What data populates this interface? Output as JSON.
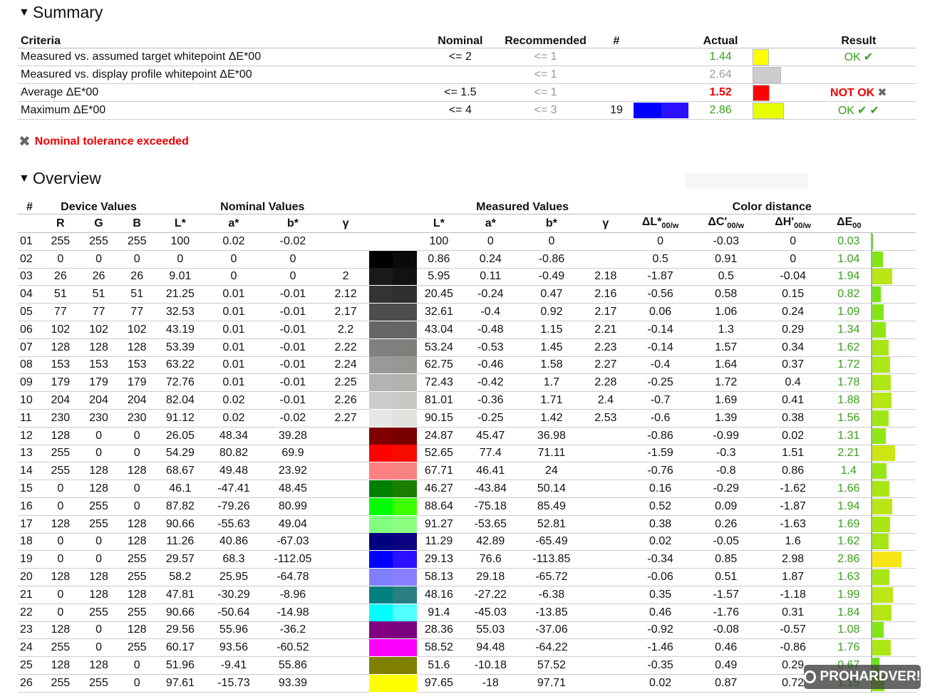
{
  "summary": {
    "title": "Summary",
    "headers": {
      "criteria": "Criteria",
      "nominal": "Nominal",
      "recommended": "Recommended",
      "count": "#",
      "actual": "Actual",
      "result": "Result"
    },
    "rows": [
      {
        "criteria": "Measured vs. assumed target whitepoint ΔE*00",
        "nominal": "<= 2",
        "recommended": "<= 1",
        "count": "",
        "count_colors": [],
        "actual": "1.44",
        "actual_style": "green",
        "bar_color": "#ffff00",
        "bar_fraction": 0.36,
        "result": "OK",
        "result_icons": [
          "check-icon"
        ]
      },
      {
        "criteria": "Measured vs. display profile whitepoint ΔE*00",
        "nominal": "",
        "recommended": "<= 1",
        "count": "",
        "count_colors": [],
        "actual": "2.64",
        "actual_style": "grey",
        "bar_color": "#cccccc",
        "bar_fraction": 0.66,
        "result": "",
        "result_icons": []
      },
      {
        "criteria": "Average ΔE*00",
        "nominal": "<= 1.5",
        "recommended": "<= 1",
        "count": "",
        "count_colors": [],
        "actual": "1.52",
        "actual_style": "red",
        "bar_color": "#ff0000",
        "bar_fraction": 0.38,
        "result": "NOT OK",
        "result_icons": [
          "cross-icon"
        ]
      },
      {
        "criteria": "Maximum ΔE*00",
        "nominal": "<= 4",
        "recommended": "<= 3",
        "count": "19",
        "count_colors": [
          "#0000ff",
          "#2a10ff"
        ],
        "actual": "2.86",
        "actual_style": "green",
        "bar_color": "#e8ff00",
        "bar_fraction": 0.72,
        "result": "OK",
        "result_icons": [
          "check-icon",
          "check-icon"
        ]
      }
    ],
    "tolerance_message": "Nominal tolerance exceeded"
  },
  "overview": {
    "title": "Overview",
    "group_headers": {
      "index": "#",
      "device": "Device Values",
      "nominal": "Nominal Values",
      "measured": "Measured Values",
      "distance": "Color distance"
    },
    "sub_headers": {
      "R": "R",
      "G": "G",
      "B": "B",
      "L": "L*",
      "a": "a*",
      "b": "b*",
      "gamma": "γ",
      "dL": "ΔL*",
      "dL_sub": "00/w",
      "dC": "ΔC'",
      "dC_sub": "00/w",
      "dH": "ΔH'",
      "dH_sub": "00/w",
      "dE": "ΔE",
      "dE_sub": "00"
    },
    "rows": [
      {
        "id": "01",
        "R": "255",
        "G": "255",
        "B": "255",
        "nL": "100",
        "na": "0.02",
        "nb": "-0.02",
        "ng": "",
        "mL": "100",
        "ma": "0",
        "mb": "0",
        "mg": "",
        "dL": "0",
        "dC": "-0.03",
        "dH": "0",
        "dE": "0.03",
        "nom_color": "#ffffff",
        "meas_color": "#ffffff"
      },
      {
        "id": "02",
        "R": "0",
        "G": "0",
        "B": "0",
        "nL": "0",
        "na": "0",
        "nb": "0",
        "ng": "",
        "mL": "0.86",
        "ma": "0.24",
        "mb": "-0.86",
        "mg": "",
        "dL": "0.5",
        "dC": "0.91",
        "dH": "0",
        "dE": "1.04",
        "nom_color": "#000000",
        "meas_color": "#0a0a0a"
      },
      {
        "id": "03",
        "R": "26",
        "G": "26",
        "B": "26",
        "nL": "9.01",
        "na": "0",
        "nb": "0",
        "ng": "2",
        "mL": "5.95",
        "ma": "0.11",
        "mb": "-0.49",
        "mg": "2.18",
        "dL": "-1.87",
        "dC": "0.5",
        "dH": "-0.04",
        "dE": "1.94",
        "nom_color": "#1a1a1a",
        "meas_color": "#121212"
      },
      {
        "id": "04",
        "R": "51",
        "G": "51",
        "B": "51",
        "nL": "21.25",
        "na": "0.01",
        "nb": "-0.01",
        "ng": "2.12",
        "mL": "20.45",
        "ma": "-0.24",
        "mb": "0.47",
        "mg": "2.16",
        "dL": "-0.56",
        "dC": "0.58",
        "dH": "0.15",
        "dE": "0.82",
        "nom_color": "#333333",
        "meas_color": "#303030"
      },
      {
        "id": "05",
        "R": "77",
        "G": "77",
        "B": "77",
        "nL": "32.53",
        "na": "0.01",
        "nb": "-0.01",
        "ng": "2.17",
        "mL": "32.61",
        "ma": "-0.4",
        "mb": "0.92",
        "mg": "2.17",
        "dL": "0.06",
        "dC": "1.06",
        "dH": "0.24",
        "dE": "1.09",
        "nom_color": "#4d4d4d",
        "meas_color": "#4c4d4c"
      },
      {
        "id": "06",
        "R": "102",
        "G": "102",
        "B": "102",
        "nL": "43.19",
        "na": "0.01",
        "nb": "-0.01",
        "ng": "2.2",
        "mL": "43.04",
        "ma": "-0.48",
        "mb": "1.15",
        "mg": "2.21",
        "dL": "-0.14",
        "dC": "1.3",
        "dH": "0.29",
        "dE": "1.34",
        "nom_color": "#666666",
        "meas_color": "#656563"
      },
      {
        "id": "07",
        "R": "128",
        "G": "128",
        "B": "128",
        "nL": "53.39",
        "na": "0.01",
        "nb": "-0.01",
        "ng": "2.22",
        "mL": "53.24",
        "ma": "-0.53",
        "mb": "1.45",
        "mg": "2.23",
        "dL": "-0.14",
        "dC": "1.57",
        "dH": "0.34",
        "dE": "1.62",
        "nom_color": "#808080",
        "meas_color": "#7f7f7c"
      },
      {
        "id": "08",
        "R": "153",
        "G": "153",
        "B": "153",
        "nL": "63.22",
        "na": "0.01",
        "nb": "-0.01",
        "ng": "2.24",
        "mL": "62.75",
        "ma": "-0.46",
        "mb": "1.58",
        "mg": "2.27",
        "dL": "-0.4",
        "dC": "1.64",
        "dH": "0.37",
        "dE": "1.72",
        "nom_color": "#999999",
        "meas_color": "#979794"
      },
      {
        "id": "09",
        "R": "179",
        "G": "179",
        "B": "179",
        "nL": "72.76",
        "na": "0.01",
        "nb": "-0.01",
        "ng": "2.25",
        "mL": "72.43",
        "ma": "-0.42",
        "mb": "1.7",
        "mg": "2.28",
        "dL": "-0.25",
        "dC": "1.72",
        "dH": "0.4",
        "dE": "1.78",
        "nom_color": "#b3b3b3",
        "meas_color": "#b1b1ae"
      },
      {
        "id": "10",
        "R": "204",
        "G": "204",
        "B": "204",
        "nL": "82.04",
        "na": "0.02",
        "nb": "-0.01",
        "ng": "2.26",
        "mL": "81.01",
        "ma": "-0.36",
        "mb": "1.71",
        "mg": "2.4",
        "dL": "-0.7",
        "dC": "1.69",
        "dH": "0.41",
        "dE": "1.88",
        "nom_color": "#cccccc",
        "meas_color": "#c8c8c5"
      },
      {
        "id": "11",
        "R": "230",
        "G": "230",
        "B": "230",
        "nL": "91.12",
        "na": "0.02",
        "nb": "-0.02",
        "ng": "2.27",
        "mL": "90.15",
        "ma": "-0.25",
        "mb": "1.42",
        "mg": "2.53",
        "dL": "-0.6",
        "dC": "1.39",
        "dH": "0.38",
        "dE": "1.56",
        "nom_color": "#e6e6e6",
        "meas_color": "#e2e2df"
      },
      {
        "id": "12",
        "R": "128",
        "G": "0",
        "B": "0",
        "nL": "26.05",
        "na": "48.34",
        "nb": "39.28",
        "ng": "",
        "mL": "24.87",
        "ma": "45.47",
        "mb": "36.98",
        "mg": "",
        "dL": "-0.86",
        "dC": "-0.99",
        "dH": "0.02",
        "dE": "1.31",
        "nom_color": "#800000",
        "meas_color": "#7a0000"
      },
      {
        "id": "13",
        "R": "255",
        "G": "0",
        "B": "0",
        "nL": "54.29",
        "na": "80.82",
        "nb": "69.9",
        "ng": "",
        "mL": "52.65",
        "ma": "77.4",
        "mb": "71.11",
        "mg": "",
        "dL": "-1.59",
        "dC": "-0.3",
        "dH": "1.51",
        "dE": "2.21",
        "nom_color": "#ff0000",
        "meas_color": "#f70a00"
      },
      {
        "id": "14",
        "R": "255",
        "G": "128",
        "B": "128",
        "nL": "68.67",
        "na": "49.48",
        "nb": "23.92",
        "ng": "",
        "mL": "67.71",
        "ma": "46.41",
        "mb": "24",
        "mg": "",
        "dL": "-0.76",
        "dC": "-0.8",
        "dH": "0.86",
        "dE": "1.4",
        "nom_color": "#ff8080",
        "meas_color": "#f88280"
      },
      {
        "id": "15",
        "R": "0",
        "G": "128",
        "B": "0",
        "nL": "46.1",
        "na": "-47.41",
        "nb": "48.45",
        "ng": "",
        "mL": "46.27",
        "ma": "-43.84",
        "mb": "50.14",
        "mg": "",
        "dL": "0.16",
        "dC": "-0.29",
        "dH": "-1.62",
        "dE": "1.66",
        "nom_color": "#008000",
        "meas_color": "#1a7f00"
      },
      {
        "id": "16",
        "R": "0",
        "G": "255",
        "B": "0",
        "nL": "87.82",
        "na": "-79.26",
        "nb": "80.99",
        "ng": "",
        "mL": "88.64",
        "ma": "-75.18",
        "mb": "85.49",
        "mg": "",
        "dL": "0.52",
        "dC": "0.09",
        "dH": "-1.87",
        "dE": "1.94",
        "nom_color": "#00ff00",
        "meas_color": "#3cff00"
      },
      {
        "id": "17",
        "R": "128",
        "G": "255",
        "B": "128",
        "nL": "90.66",
        "na": "-55.63",
        "nb": "49.04",
        "ng": "",
        "mL": "91.27",
        "ma": "-53.65",
        "mb": "52.81",
        "mg": "",
        "dL": "0.38",
        "dC": "0.26",
        "dH": "-1.63",
        "dE": "1.69",
        "nom_color": "#80ff80",
        "meas_color": "#8cff80"
      },
      {
        "id": "18",
        "R": "0",
        "G": "0",
        "B": "128",
        "nL": "11.26",
        "na": "40.86",
        "nb": "-67.03",
        "ng": "",
        "mL": "11.29",
        "ma": "42.89",
        "mb": "-65.49",
        "mg": "",
        "dL": "0.02",
        "dC": "-0.05",
        "dH": "1.6",
        "dE": "1.62",
        "nom_color": "#000080",
        "meas_color": "#0a0080"
      },
      {
        "id": "19",
        "R": "0",
        "G": "0",
        "B": "255",
        "nL": "29.57",
        "na": "68.3",
        "nb": "-112.05",
        "ng": "",
        "mL": "29.13",
        "ma": "76.6",
        "mb": "-113.85",
        "mg": "",
        "dL": "-0.34",
        "dC": "0.85",
        "dH": "2.98",
        "dE": "2.86",
        "nom_color": "#0000ff",
        "meas_color": "#2a10ff"
      },
      {
        "id": "20",
        "R": "128",
        "G": "128",
        "B": "255",
        "nL": "58.2",
        "na": "25.95",
        "nb": "-64.78",
        "ng": "",
        "mL": "58.13",
        "ma": "29.18",
        "mb": "-65.72",
        "mg": "",
        "dL": "-0.06",
        "dC": "0.51",
        "dH": "1.87",
        "dE": "1.63",
        "nom_color": "#8080ff",
        "meas_color": "#877fff"
      },
      {
        "id": "21",
        "R": "0",
        "G": "128",
        "B": "128",
        "nL": "47.81",
        "na": "-30.29",
        "nb": "-8.96",
        "ng": "",
        "mL": "48.16",
        "ma": "-27.22",
        "mb": "-6.38",
        "mg": "",
        "dL": "0.35",
        "dC": "-1.57",
        "dH": "-1.18",
        "dE": "1.99",
        "nom_color": "#008080",
        "meas_color": "#2a8080"
      },
      {
        "id": "22",
        "R": "0",
        "G": "255",
        "B": "255",
        "nL": "90.66",
        "na": "-50.64",
        "nb": "-14.98",
        "ng": "",
        "mL": "91.4",
        "ma": "-45.03",
        "mb": "-13.85",
        "mg": "",
        "dL": "0.46",
        "dC": "-1.76",
        "dH": "0.31",
        "dE": "1.84",
        "nom_color": "#00ffff",
        "meas_color": "#50ffff"
      },
      {
        "id": "23",
        "R": "128",
        "G": "0",
        "B": "128",
        "nL": "29.56",
        "na": "55.96",
        "nb": "-36.2",
        "ng": "",
        "mL": "28.36",
        "ma": "55.03",
        "mb": "-37.06",
        "mg": "",
        "dL": "-0.92",
        "dC": "-0.08",
        "dH": "-0.57",
        "dE": "1.08",
        "nom_color": "#800080",
        "meas_color": "#7a007e"
      },
      {
        "id": "24",
        "R": "255",
        "G": "0",
        "B": "255",
        "nL": "60.17",
        "na": "93.56",
        "nb": "-60.52",
        "ng": "",
        "mL": "58.52",
        "ma": "94.48",
        "mb": "-64.22",
        "mg": "",
        "dL": "-1.46",
        "dC": "0.46",
        "dH": "-0.86",
        "dE": "1.76",
        "nom_color": "#ff00ff",
        "meas_color": "#fa00ff"
      },
      {
        "id": "25",
        "R": "128",
        "G": "128",
        "B": "0",
        "nL": "51.96",
        "na": "-9.41",
        "nb": "55.86",
        "ng": "",
        "mL": "51.6",
        "ma": "-10.18",
        "mb": "57.52",
        "mg": "",
        "dL": "-0.35",
        "dC": "0.49",
        "dH": "0.29",
        "dE": "0.67",
        "nom_color": "#808000",
        "meas_color": "#7f7f00"
      },
      {
        "id": "26",
        "R": "255",
        "G": "255",
        "B": "0",
        "nL": "97.61",
        "na": "-15.73",
        "nb": "93.39",
        "ng": "",
        "mL": "97.65",
        "ma": "-18",
        "mb": "97.71",
        "mg": "",
        "dL": "0.02",
        "dC": "0.87",
        "dH": "0.72",
        "dE": "1.15",
        "nom_color": "#ffff00",
        "meas_color": "#ffff00"
      }
    ]
  },
  "watermark": {
    "text": "PROHARDVER!"
  }
}
